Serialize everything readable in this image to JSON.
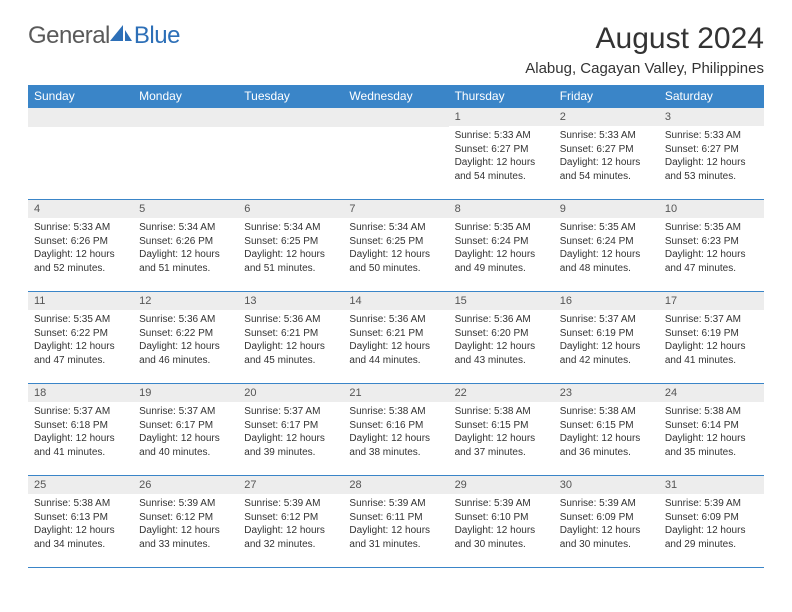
{
  "logo": {
    "text1": "General",
    "text2": "Blue"
  },
  "header": {
    "month_title": "August 2024",
    "location": "Alabug, Cagayan Valley, Philippines"
  },
  "colors": {
    "accent": "#3a85c8",
    "logo_blue": "#2d6fb7",
    "daynum_bg": "#ededed",
    "text": "#333333"
  },
  "calendar": {
    "day_headers": [
      "Sunday",
      "Monday",
      "Tuesday",
      "Wednesday",
      "Thursday",
      "Friday",
      "Saturday"
    ],
    "weeks": [
      [
        {
          "blank": true
        },
        {
          "blank": true
        },
        {
          "blank": true
        },
        {
          "blank": true
        },
        {
          "num": "1",
          "sunrise": "Sunrise: 5:33 AM",
          "sunset": "Sunset: 6:27 PM",
          "daylight1": "Daylight: 12 hours",
          "daylight2": "and 54 minutes."
        },
        {
          "num": "2",
          "sunrise": "Sunrise: 5:33 AM",
          "sunset": "Sunset: 6:27 PM",
          "daylight1": "Daylight: 12 hours",
          "daylight2": "and 54 minutes."
        },
        {
          "num": "3",
          "sunrise": "Sunrise: 5:33 AM",
          "sunset": "Sunset: 6:27 PM",
          "daylight1": "Daylight: 12 hours",
          "daylight2": "and 53 minutes."
        }
      ],
      [
        {
          "num": "4",
          "sunrise": "Sunrise: 5:33 AM",
          "sunset": "Sunset: 6:26 PM",
          "daylight1": "Daylight: 12 hours",
          "daylight2": "and 52 minutes."
        },
        {
          "num": "5",
          "sunrise": "Sunrise: 5:34 AM",
          "sunset": "Sunset: 6:26 PM",
          "daylight1": "Daylight: 12 hours",
          "daylight2": "and 51 minutes."
        },
        {
          "num": "6",
          "sunrise": "Sunrise: 5:34 AM",
          "sunset": "Sunset: 6:25 PM",
          "daylight1": "Daylight: 12 hours",
          "daylight2": "and 51 minutes."
        },
        {
          "num": "7",
          "sunrise": "Sunrise: 5:34 AM",
          "sunset": "Sunset: 6:25 PM",
          "daylight1": "Daylight: 12 hours",
          "daylight2": "and 50 minutes."
        },
        {
          "num": "8",
          "sunrise": "Sunrise: 5:35 AM",
          "sunset": "Sunset: 6:24 PM",
          "daylight1": "Daylight: 12 hours",
          "daylight2": "and 49 minutes."
        },
        {
          "num": "9",
          "sunrise": "Sunrise: 5:35 AM",
          "sunset": "Sunset: 6:24 PM",
          "daylight1": "Daylight: 12 hours",
          "daylight2": "and 48 minutes."
        },
        {
          "num": "10",
          "sunrise": "Sunrise: 5:35 AM",
          "sunset": "Sunset: 6:23 PM",
          "daylight1": "Daylight: 12 hours",
          "daylight2": "and 47 minutes."
        }
      ],
      [
        {
          "num": "11",
          "sunrise": "Sunrise: 5:35 AM",
          "sunset": "Sunset: 6:22 PM",
          "daylight1": "Daylight: 12 hours",
          "daylight2": "and 47 minutes."
        },
        {
          "num": "12",
          "sunrise": "Sunrise: 5:36 AM",
          "sunset": "Sunset: 6:22 PM",
          "daylight1": "Daylight: 12 hours",
          "daylight2": "and 46 minutes."
        },
        {
          "num": "13",
          "sunrise": "Sunrise: 5:36 AM",
          "sunset": "Sunset: 6:21 PM",
          "daylight1": "Daylight: 12 hours",
          "daylight2": "and 45 minutes."
        },
        {
          "num": "14",
          "sunrise": "Sunrise: 5:36 AM",
          "sunset": "Sunset: 6:21 PM",
          "daylight1": "Daylight: 12 hours",
          "daylight2": "and 44 minutes."
        },
        {
          "num": "15",
          "sunrise": "Sunrise: 5:36 AM",
          "sunset": "Sunset: 6:20 PM",
          "daylight1": "Daylight: 12 hours",
          "daylight2": "and 43 minutes."
        },
        {
          "num": "16",
          "sunrise": "Sunrise: 5:37 AM",
          "sunset": "Sunset: 6:19 PM",
          "daylight1": "Daylight: 12 hours",
          "daylight2": "and 42 minutes."
        },
        {
          "num": "17",
          "sunrise": "Sunrise: 5:37 AM",
          "sunset": "Sunset: 6:19 PM",
          "daylight1": "Daylight: 12 hours",
          "daylight2": "and 41 minutes."
        }
      ],
      [
        {
          "num": "18",
          "sunrise": "Sunrise: 5:37 AM",
          "sunset": "Sunset: 6:18 PM",
          "daylight1": "Daylight: 12 hours",
          "daylight2": "and 41 minutes."
        },
        {
          "num": "19",
          "sunrise": "Sunrise: 5:37 AM",
          "sunset": "Sunset: 6:17 PM",
          "daylight1": "Daylight: 12 hours",
          "daylight2": "and 40 minutes."
        },
        {
          "num": "20",
          "sunrise": "Sunrise: 5:37 AM",
          "sunset": "Sunset: 6:17 PM",
          "daylight1": "Daylight: 12 hours",
          "daylight2": "and 39 minutes."
        },
        {
          "num": "21",
          "sunrise": "Sunrise: 5:38 AM",
          "sunset": "Sunset: 6:16 PM",
          "daylight1": "Daylight: 12 hours",
          "daylight2": "and 38 minutes."
        },
        {
          "num": "22",
          "sunrise": "Sunrise: 5:38 AM",
          "sunset": "Sunset: 6:15 PM",
          "daylight1": "Daylight: 12 hours",
          "daylight2": "and 37 minutes."
        },
        {
          "num": "23",
          "sunrise": "Sunrise: 5:38 AM",
          "sunset": "Sunset: 6:15 PM",
          "daylight1": "Daylight: 12 hours",
          "daylight2": "and 36 minutes."
        },
        {
          "num": "24",
          "sunrise": "Sunrise: 5:38 AM",
          "sunset": "Sunset: 6:14 PM",
          "daylight1": "Daylight: 12 hours",
          "daylight2": "and 35 minutes."
        }
      ],
      [
        {
          "num": "25",
          "sunrise": "Sunrise: 5:38 AM",
          "sunset": "Sunset: 6:13 PM",
          "daylight1": "Daylight: 12 hours",
          "daylight2": "and 34 minutes."
        },
        {
          "num": "26",
          "sunrise": "Sunrise: 5:39 AM",
          "sunset": "Sunset: 6:12 PM",
          "daylight1": "Daylight: 12 hours",
          "daylight2": "and 33 minutes."
        },
        {
          "num": "27",
          "sunrise": "Sunrise: 5:39 AM",
          "sunset": "Sunset: 6:12 PM",
          "daylight1": "Daylight: 12 hours",
          "daylight2": "and 32 minutes."
        },
        {
          "num": "28",
          "sunrise": "Sunrise: 5:39 AM",
          "sunset": "Sunset: 6:11 PM",
          "daylight1": "Daylight: 12 hours",
          "daylight2": "and 31 minutes."
        },
        {
          "num": "29",
          "sunrise": "Sunrise: 5:39 AM",
          "sunset": "Sunset: 6:10 PM",
          "daylight1": "Daylight: 12 hours",
          "daylight2": "and 30 minutes."
        },
        {
          "num": "30",
          "sunrise": "Sunrise: 5:39 AM",
          "sunset": "Sunset: 6:09 PM",
          "daylight1": "Daylight: 12 hours",
          "daylight2": "and 30 minutes."
        },
        {
          "num": "31",
          "sunrise": "Sunrise: 5:39 AM",
          "sunset": "Sunset: 6:09 PM",
          "daylight1": "Daylight: 12 hours",
          "daylight2": "and 29 minutes."
        }
      ]
    ]
  }
}
